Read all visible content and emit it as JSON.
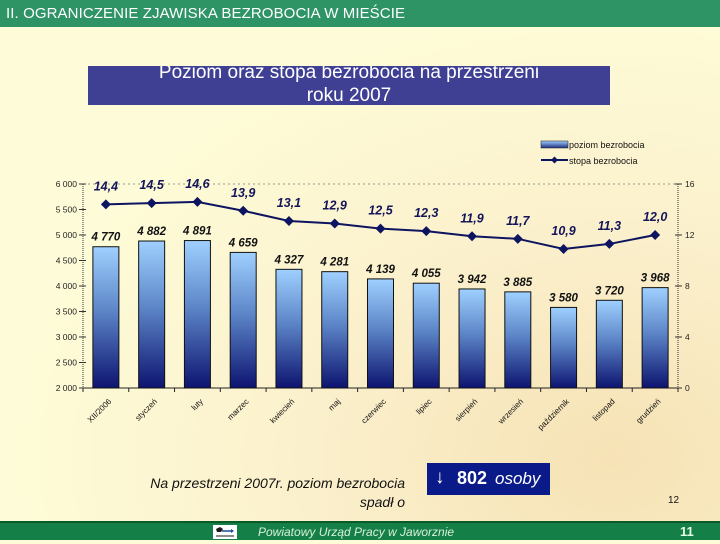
{
  "header": {
    "title": "II.   OGRANICZENIE ZJAWISKA BEZROBOCIA W MIEŚCIE"
  },
  "title_box": {
    "line1": "Poziom oraz stopa bezrobocia na przestrzeni",
    "line2": "roku 2007"
  },
  "legend": {
    "bar_label": "poziom bezrobocia",
    "line_label": "stopa bezrobocia"
  },
  "colors": {
    "header_bg": "#2e9466",
    "title_bg": "#3f3f93",
    "bar_top": "#99ccff",
    "bar_bottom": "#0d1470",
    "line": "#0d1460",
    "footer_bg": "#148048",
    "note_box_bg": "#0a1a88"
  },
  "chart_data": {
    "type": "bar+line",
    "title": "Poziom oraz stopa bezrobocia na przestrzeni roku 2007",
    "categories": [
      "XII/2006",
      "styczeń",
      "luty",
      "marzec",
      "kwiecień",
      "maj",
      "czerwiec",
      "lipiec",
      "sierpień",
      "wrzesień",
      "październik",
      "listopad",
      "grudzień"
    ],
    "series": [
      {
        "name": "poziom bezrobocia",
        "type": "bar",
        "axis": "left",
        "values": [
          4770,
          4882,
          4891,
          4659,
          4327,
          4281,
          4139,
          4055,
          3942,
          3885,
          3580,
          3720,
          3968
        ],
        "labels": [
          "4 770",
          "4 882",
          "4 891",
          "4 659",
          "4 327",
          "4 281",
          "4 139",
          "4 055",
          "3 942",
          "3 885",
          "3 580",
          "3 720",
          "3 968"
        ]
      },
      {
        "name": "stopa bezrobocia",
        "type": "line",
        "axis": "right",
        "values": [
          14.4,
          14.5,
          14.6,
          13.9,
          13.1,
          12.9,
          12.5,
          12.3,
          11.9,
          11.7,
          10.9,
          11.3,
          12.0
        ],
        "labels": [
          "14,4",
          "14,5",
          "14,6",
          "13,9",
          "13,1",
          "12,9",
          "12,5",
          "12,3",
          "11,9",
          "11,7",
          "10,9",
          "11,3",
          "12,0"
        ]
      }
    ],
    "left_axis": {
      "min": 2000,
      "max": 6000,
      "ticks": [
        "2 000",
        "2 500",
        "3 000",
        "3 500",
        "4 000",
        "4 500",
        "5 000",
        "5 500",
        "6 000"
      ]
    },
    "right_axis": {
      "min": 0,
      "max": 16,
      "ticks": [
        "0",
        "4",
        "8",
        "12",
        "16"
      ]
    },
    "legend_position": "top-right",
    "grid": false
  },
  "note": {
    "text_line1": "Na przestrzeni 2007r. poziom bezrobocia",
    "text_line2": "spadł  o",
    "arrow": "↓",
    "value": "802",
    "unit": "osoby"
  },
  "slide_small_number": "12",
  "footer": {
    "text": "Powiatowy Urząd Pracy w Jaworznie",
    "page_number": "11"
  }
}
